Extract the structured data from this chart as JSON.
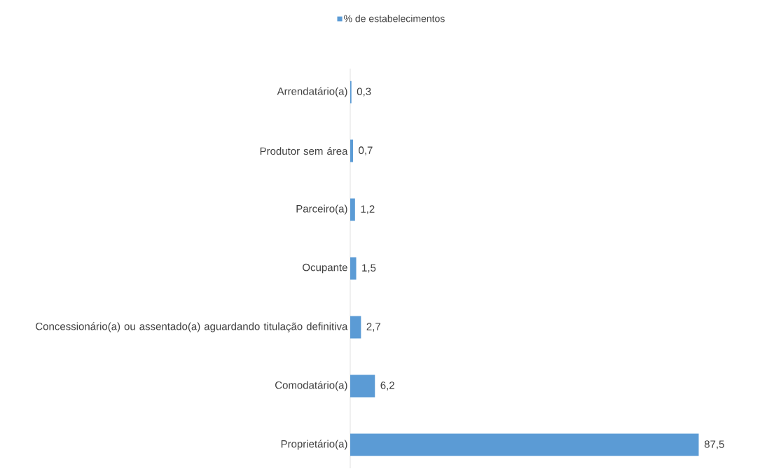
{
  "chart_data": {
    "type": "bar",
    "orientation": "horizontal",
    "legend": "top",
    "categories": [
      "Arrendatário(a)",
      "Produtor sem área",
      "Parceiro(a)",
      "Ocupante",
      "Concessionário(a) ou assentado(a) aguardando titulação definitiva",
      "Comodatário(a)",
      "Proprietário(a)"
    ],
    "series": [
      {
        "name": "% de estabelecimentos",
        "color": "#5b9bd5",
        "values": [
          0.3,
          0.7,
          1.2,
          1.5,
          2.7,
          6.2,
          87.5
        ],
        "value_labels": [
          "0,3",
          "0,7",
          "1,2",
          "1,5",
          "2,7",
          "6,2",
          "87,5"
        ]
      }
    ]
  }
}
